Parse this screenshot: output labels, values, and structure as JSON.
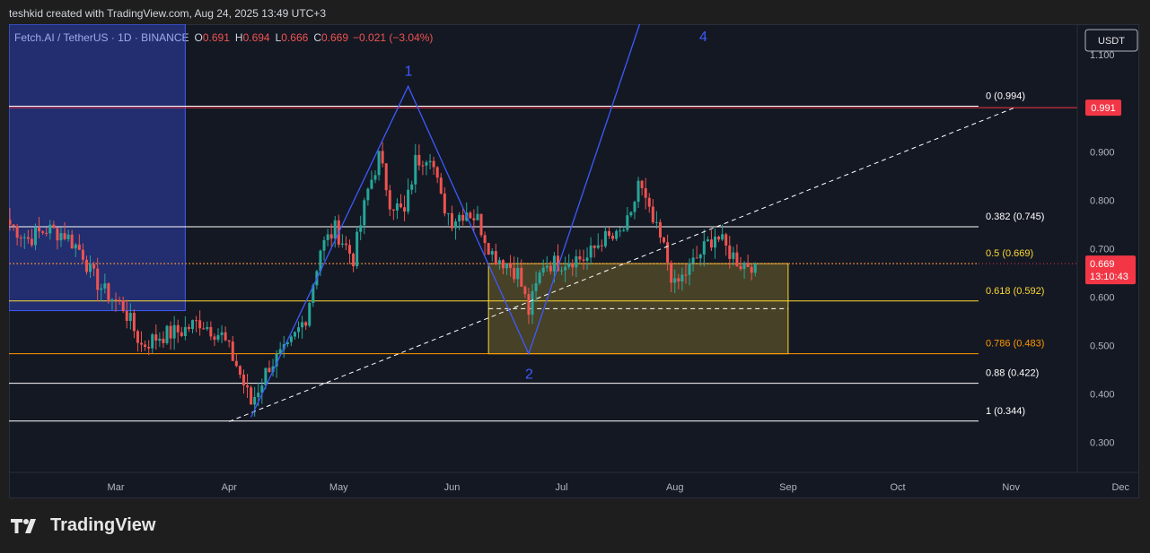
{
  "credit": "teshkid created with TradingView.com, Aug 24, 2025 13:49 UTC+3",
  "brand": "TradingView",
  "colors": {
    "up": "#26a69a",
    "down": "#ef5350",
    "wave": "#3d5afe",
    "fib_mid": "#fdd835",
    "fib_786": "#ff9800",
    "price_box": "#f23645"
  },
  "chart_data": {
    "type": "candlestick",
    "symbol": "Fetch.AI / TetherUS · 1D · BINANCE",
    "ohlc": {
      "o_label": "O",
      "o": "0.691",
      "h_label": "H",
      "h": "0.694",
      "l_label": "L",
      "l": "0.666",
      "c_label": "C",
      "c": "0.669",
      "change": "−0.021 (−3.04%)"
    },
    "currency": "USDT",
    "ylim": [
      0.2382,
      1.1632
    ],
    "y_ticks": [
      "1.100",
      "0.900",
      "0.800",
      "0.700",
      "0.600",
      "0.500",
      "0.400",
      "0.300"
    ],
    "x_ticks": [
      {
        "label": "Mar",
        "date": "2025-03-01"
      },
      {
        "label": "Apr",
        "date": "2025-04-01"
      },
      {
        "label": "May",
        "date": "2025-05-01"
      },
      {
        "label": "Jun",
        "date": "2025-06-01"
      },
      {
        "label": "Jul",
        "date": "2025-07-01"
      },
      {
        "label": "Aug",
        "date": "2025-08-01"
      },
      {
        "label": "Sep",
        "date": "2025-09-01"
      },
      {
        "label": "Oct",
        "date": "2025-10-01"
      },
      {
        "label": "Nov",
        "date": "2025-11-01"
      },
      {
        "label": "Dec",
        "date": "2025-12-01"
      }
    ],
    "fib_levels": [
      {
        "label": "0 (0.994)",
        "value": 0.994,
        "color": "#ffffff"
      },
      {
        "label": "0.382 (0.745)",
        "value": 0.745,
        "color": "#ffffff"
      },
      {
        "label": "0.5 (0.669)",
        "value": 0.669,
        "color": "#fdd835"
      },
      {
        "label": "0.618 (0.592)",
        "value": 0.592,
        "color": "#fdd835"
      },
      {
        "label": "0.786 (0.483)",
        "value": 0.483,
        "color": "#ff9800"
      },
      {
        "label": "0.88 (0.422)",
        "value": 0.422,
        "color": "#ffffff"
      },
      {
        "label": "1 (0.344)",
        "value": 0.344,
        "color": "#ffffff"
      }
    ],
    "red_line": {
      "value": 0.991,
      "label": "0.991"
    },
    "last_price": {
      "value": 0.669,
      "label": "0.669",
      "countdown": "13:10:43"
    },
    "wave_labels": [
      "1",
      "2",
      "4"
    ],
    "wave_points": [
      {
        "date": "2025-04-07",
        "value": 0.352
      },
      {
        "date": "2025-05-20",
        "value": 1.035
      },
      {
        "date": "2025-06-22",
        "value": 0.483
      },
      {
        "date": "2025-07-24",
        "value": 1.2
      }
    ],
    "trendline": [
      {
        "date": "2025-04-01",
        "value": 0.343
      },
      {
        "date": "2025-11-02",
        "value": 0.991
      }
    ],
    "zones": [
      {
        "kind": "blue_box",
        "from": "2025-01-31",
        "to": "2025-03-20",
        "top": 1.163,
        "bottom": 0.572
      },
      {
        "kind": "yellow_box",
        "from": "2025-06-11",
        "to": "2025-09-01",
        "top": 0.669,
        "bottom": 0.483,
        "mid": 0.576
      }
    ],
    "anchor_closes": [
      {
        "date": "2025-01-31",
        "close": 0.75
      },
      {
        "date": "2025-02-05",
        "close": 0.72
      },
      {
        "date": "2025-02-10",
        "close": 0.74
      },
      {
        "date": "2025-02-15",
        "close": 0.73
      },
      {
        "date": "2025-02-20",
        "close": 0.69
      },
      {
        "date": "2025-02-22",
        "close": 0.65
      },
      {
        "date": "2025-02-26",
        "close": 0.61
      },
      {
        "date": "2025-03-03",
        "close": 0.58
      },
      {
        "date": "2025-03-08",
        "close": 0.5
      },
      {
        "date": "2025-03-13",
        "close": 0.52
      },
      {
        "date": "2025-03-19",
        "close": 0.53
      },
      {
        "date": "2025-03-24",
        "close": 0.55
      },
      {
        "date": "2025-03-30",
        "close": 0.52
      },
      {
        "date": "2025-04-03",
        "close": 0.46
      },
      {
        "date": "2025-04-07",
        "close": 0.38
      },
      {
        "date": "2025-04-12",
        "close": 0.46
      },
      {
        "date": "2025-04-17",
        "close": 0.49
      },
      {
        "date": "2025-04-22",
        "close": 0.56
      },
      {
        "date": "2025-04-26",
        "close": 0.7
      },
      {
        "date": "2025-04-30",
        "close": 0.74
      },
      {
        "date": "2025-05-05",
        "close": 0.68
      },
      {
        "date": "2025-05-09",
        "close": 0.82
      },
      {
        "date": "2025-05-12",
        "close": 0.89
      },
      {
        "date": "2025-05-15",
        "close": 0.8
      },
      {
        "date": "2025-05-19",
        "close": 0.77
      },
      {
        "date": "2025-05-22",
        "close": 0.88
      },
      {
        "date": "2025-05-26",
        "close": 0.9
      },
      {
        "date": "2025-05-29",
        "close": 0.8
      },
      {
        "date": "2025-06-01",
        "close": 0.76
      },
      {
        "date": "2025-06-05",
        "close": 0.78
      },
      {
        "date": "2025-06-08",
        "close": 0.76
      },
      {
        "date": "2025-06-12",
        "close": 0.69
      },
      {
        "date": "2025-06-16",
        "close": 0.67
      },
      {
        "date": "2025-06-19",
        "close": 0.65
      },
      {
        "date": "2025-06-22",
        "close": 0.57
      },
      {
        "date": "2025-06-26",
        "close": 0.67
      },
      {
        "date": "2025-06-30",
        "close": 0.67
      },
      {
        "date": "2025-07-04",
        "close": 0.68
      },
      {
        "date": "2025-07-08",
        "close": 0.68
      },
      {
        "date": "2025-07-12",
        "close": 0.72
      },
      {
        "date": "2025-07-16",
        "close": 0.72
      },
      {
        "date": "2025-07-20",
        "close": 0.76
      },
      {
        "date": "2025-07-22",
        "close": 0.84
      },
      {
        "date": "2025-07-25",
        "close": 0.77
      },
      {
        "date": "2025-07-29",
        "close": 0.7
      },
      {
        "date": "2025-08-01",
        "close": 0.62
      },
      {
        "date": "2025-08-04",
        "close": 0.65
      },
      {
        "date": "2025-08-08",
        "close": 0.69
      },
      {
        "date": "2025-08-12",
        "close": 0.73
      },
      {
        "date": "2025-08-15",
        "close": 0.7
      },
      {
        "date": "2025-08-19",
        "close": 0.67
      },
      {
        "date": "2025-08-23",
        "close": 0.669
      }
    ]
  }
}
